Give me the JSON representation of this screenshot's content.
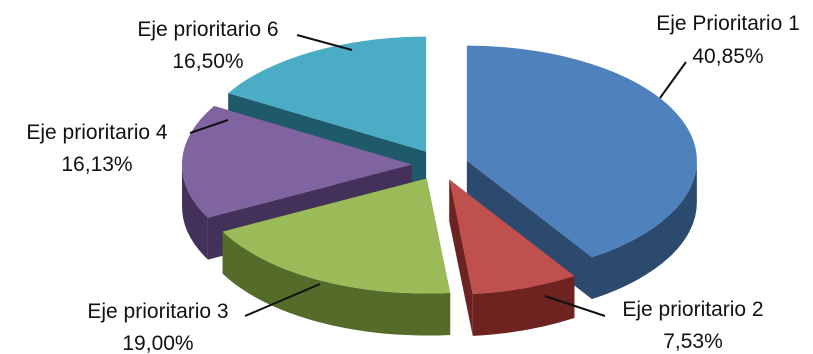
{
  "chart_data": {
    "type": "pie",
    "title": "",
    "slices": [
      {
        "name": "Eje Prioritario 1",
        "value": 40.85,
        "label": "40,85%",
        "color": "#4F81BD",
        "side": "#2B4A6E"
      },
      {
        "name": "Eje prioritario 2",
        "value": 7.53,
        "label": "7,53%",
        "color": "#C0504D",
        "side": "#6E2321"
      },
      {
        "name": "Eje prioritario 3",
        "value": 19.0,
        "label": "19,00%",
        "color": "#9BBB59",
        "side": "#546B2A"
      },
      {
        "name": "Eje prioritario 4",
        "value": 16.13,
        "label": "16,13%",
        "color": "#8064A2",
        "side": "#433159"
      },
      {
        "name": "Eje prioritario 6",
        "value": 16.5,
        "label": "16,50%",
        "color": "#4BACC6",
        "side": "#1F5A6B"
      }
    ]
  }
}
